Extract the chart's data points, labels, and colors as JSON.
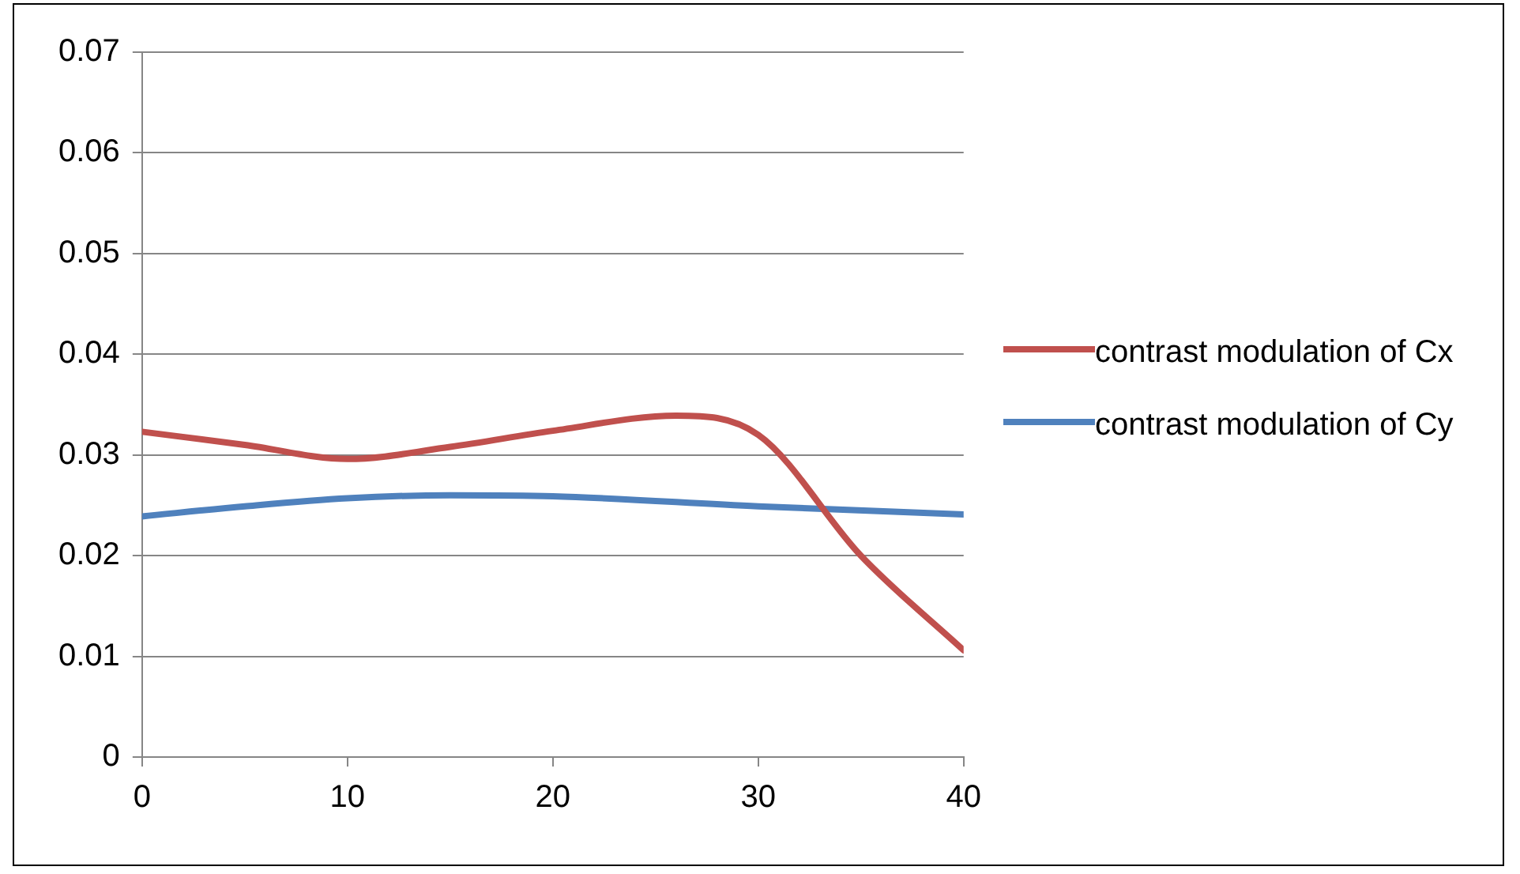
{
  "chart_data": {
    "type": "line",
    "xlim": [
      0,
      40
    ],
    "xticks": [
      0,
      10,
      20,
      30,
      40
    ],
    "ylim": [
      0,
      0.07
    ],
    "yticks": [
      0,
      0.01,
      0.02,
      0.03,
      0.04,
      0.05,
      0.06,
      0.07
    ],
    "grid": "y",
    "legend": "right",
    "marker": "none",
    "line_style": "solid",
    "series": [
      {
        "name": "contrast modulation of Cx",
        "color": "#c0504d",
        "x": [
          0,
          5,
          10,
          15,
          20,
          26,
          30,
          35,
          40
        ],
        "values": [
          0.0323,
          0.031,
          0.0296,
          0.0308,
          0.0324,
          0.0339,
          0.032,
          0.02,
          0.0106
        ]
      },
      {
        "name": "contrast modulation of Cy",
        "color": "#4f81bd",
        "x": [
          0,
          5,
          10,
          15,
          20,
          30,
          40
        ],
        "values": [
          0.0239,
          0.0249,
          0.0257,
          0.026,
          0.0259,
          0.0249,
          0.0241
        ]
      }
    ]
  }
}
